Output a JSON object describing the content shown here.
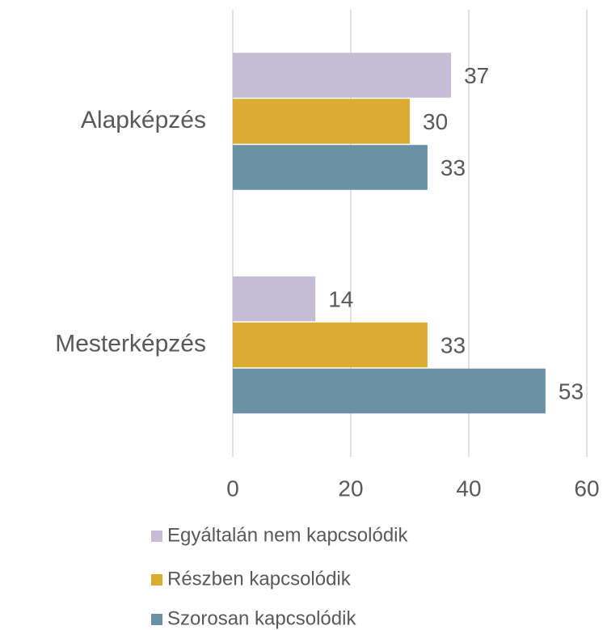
{
  "chart_data": {
    "type": "hbar",
    "categories": [
      "Alapképzés",
      "Mesterképzés"
    ],
    "series": [
      {
        "name": "Egyáltalán nem kapcsolódik",
        "color": "#c5bdd6",
        "values": [
          37,
          14
        ]
      },
      {
        "name": "Részben kapcsolódik",
        "color": "#dcab32",
        "values": [
          30,
          33
        ]
      },
      {
        "name": "Szorosan kapcsolódik",
        "color": "#6a91a5",
        "values": [
          33,
          53
        ]
      }
    ],
    "xlim": [
      0,
      60
    ],
    "xticks": [
      0,
      20,
      40,
      60
    ],
    "grid": true,
    "legend": "bottom"
  }
}
